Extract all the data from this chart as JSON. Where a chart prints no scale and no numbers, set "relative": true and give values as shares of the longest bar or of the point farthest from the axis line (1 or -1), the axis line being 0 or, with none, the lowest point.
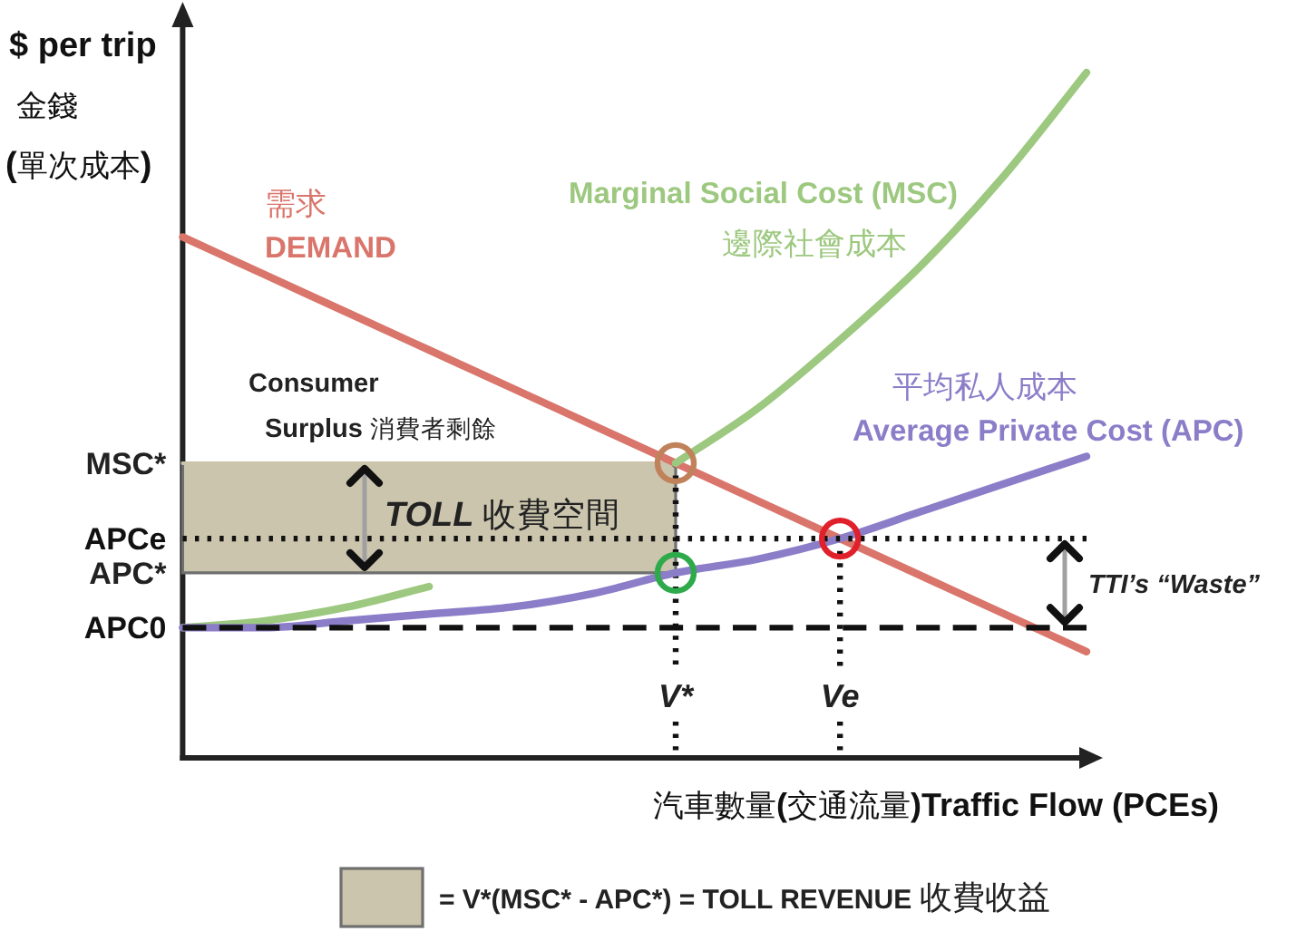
{
  "chart_data": {
    "type": "line",
    "relative": true,
    "legend": "bottom",
    "xlabel": "汽車數量(交通流量)Traffic Flow (PCEs)",
    "ylabel": "$ per trip\n金錢\n(單次成本)",
    "categories": [
      null,
      null,
      null,
      null,
      null,
      null,
      "V*",
      null,
      "Ve",
      null,
      null,
      null
    ],
    "series": [
      {
        "name": "需求\nDEMAND",
        "color": "#d9756b",
        "values": [
          0.76,
          0.705,
          0.65,
          0.595,
          0.54,
          0.485,
          0.43,
          0.375,
          0.32,
          0.265,
          0.21,
          0.155
        ]
      },
      {
        "name": "Marginal Social Cost (MSC)\n邊際社會成本",
        "color": "#9dc87f",
        "values": [
          0.19,
          0.2,
          0.22,
          0.25,
          null,
          null,
          0.43,
          0.51,
          0.61,
          0.72,
          0.85,
          1.0
        ]
      },
      {
        "name": "平均私人成本\nAverage Private Cost (APC)",
        "color": "#8b7dc8",
        "values": [
          0.19,
          0.19,
          0.2,
          0.21,
          0.22,
          0.24,
          0.27,
          0.29,
          0.32,
          0.36,
          0.4,
          0.44
        ]
      },
      {
        "name": "APCe",
        "color": "#111111",
        "line_style": "dotted",
        "values": [
          0.32,
          0.32,
          0.32,
          0.32,
          0.32,
          0.32,
          0.32,
          0.32,
          0.32,
          0.32,
          0.32,
          0.32
        ]
      },
      {
        "name": "APC0",
        "color": "#111111",
        "line_style": "dashed",
        "values": [
          0.19,
          0.19,
          0.19,
          0.19,
          0.19,
          0.19,
          0.19,
          0.19,
          0.19,
          0.19,
          0.19,
          0.19
        ]
      },
      {
        "name": "= V*(MSC* - APC*) = TOLL REVENUE 收費收益",
        "color": "#cbc5ad",
        "values": [
          0.43,
          0.43,
          0.43,
          0.43,
          0.43,
          0.43,
          0.43,
          null,
          null,
          null,
          null,
          null
        ],
        "lower": [
          0.27,
          0.27,
          0.27,
          0.27,
          0.27,
          0.27,
          0.27,
          null,
          null,
          null,
          null,
          null
        ],
        "upper": [
          0.43,
          0.43,
          0.43,
          0.43,
          0.43,
          0.43,
          0.43,
          null,
          null,
          null,
          null,
          null
        ]
      },
      {
        "type": "scatter",
        "marker": "circle",
        "color": "#c0825a",
        "values": [
          null,
          null,
          null,
          null,
          null,
          null,
          0.43,
          null,
          null,
          null,
          null,
          null
        ]
      },
      {
        "type": "scatter",
        "marker": "circle",
        "color": "#2eaa4a",
        "values": [
          null,
          null,
          null,
          null,
          null,
          null,
          0.27,
          null,
          null,
          null,
          null,
          null
        ]
      },
      {
        "type": "scatter",
        "marker": "circle",
        "color": "#e0202a",
        "values": [
          null,
          null,
          null,
          null,
          null,
          null,
          null,
          null,
          0.32,
          null,
          null,
          null
        ]
      }
    ],
    "ref_lines": [
      {
        "axis": "x",
        "value": "V*",
        "line_style": "dotted",
        "color": "#111111"
      },
      {
        "axis": "x",
        "value": "Ve",
        "line_style": "dotted",
        "color": "#111111"
      }
    ],
    "annotations": [
      "MSC*",
      "APC*",
      "Consumer\nSurplus 消費者剩餘",
      "TOLL 收費空間",
      "TTI’s “Waste”"
    ]
  }
}
